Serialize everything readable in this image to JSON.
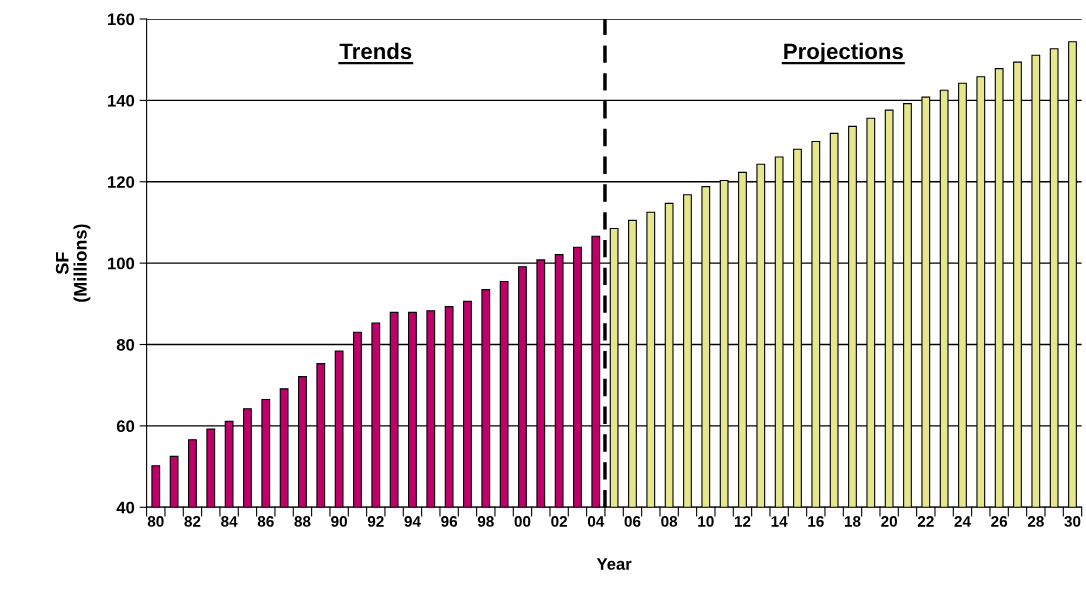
{
  "chart_data": {
    "type": "bar",
    "xlabel": "Year",
    "ylabel": "SF\n(Millions)",
    "categories": [
      "80",
      null,
      "82",
      null,
      "84",
      null,
      "86",
      null,
      "88",
      null,
      "90",
      null,
      "92",
      null,
      "94",
      null,
      "96",
      null,
      "98",
      null,
      "00",
      null,
      "02",
      null,
      "04",
      null,
      "06",
      null,
      "08",
      null,
      "10",
      null,
      "12",
      null,
      "14",
      null,
      "16",
      null,
      "18",
      null,
      "20",
      null,
      "22",
      null,
      "24",
      null,
      "26",
      null,
      "28",
      null,
      "30"
    ],
    "values": [
      50.2,
      52.5,
      56.6,
      59.2,
      61.1,
      64.2,
      66.5,
      69.1,
      72.1,
      75.3,
      78.4,
      83.0,
      85.3,
      87.9,
      87.9,
      88.3,
      89.3,
      90.6,
      93.5,
      95.5,
      99.1,
      100.8,
      102.1,
      103.9,
      106.6,
      108.5,
      110.5,
      112.5,
      114.7,
      116.8,
      118.8,
      120.3,
      122.3,
      124.3,
      126.1,
      128.0,
      129.9,
      131.9,
      133.6,
      135.6,
      137.6,
      139.2,
      140.8,
      142.5,
      144.2,
      145.8,
      147.8,
      149.4,
      151.1,
      152.7,
      154.4
    ],
    "colors": [
      "#c0006a",
      "#c0006a",
      "#c0006a",
      "#c0006a",
      "#c0006a",
      "#c0006a",
      "#c0006a",
      "#c0006a",
      "#c0006a",
      "#c0006a",
      "#c0006a",
      "#c0006a",
      "#c0006a",
      "#c0006a",
      "#c0006a",
      "#c0006a",
      "#c0006a",
      "#c0006a",
      "#c0006a",
      "#c0006a",
      "#c0006a",
      "#c0006a",
      "#c0006a",
      "#c0006a",
      "#c0006a",
      "#e6e68c",
      "#e6e68c",
      "#e6e68c",
      "#e6e68c",
      "#e6e68c",
      "#e6e68c",
      "#e6e68c",
      "#e6e68c",
      "#e6e68c",
      "#e6e68c",
      "#e6e68c",
      "#e6e68c",
      "#e6e68c",
      "#e6e68c",
      "#e6e68c",
      "#e6e68c",
      "#e6e68c",
      "#e6e68c",
      "#e6e68c",
      "#e6e68c",
      "#e6e68c",
      "#e6e68c",
      "#e6e68c",
      "#e6e68c",
      "#e6e68c",
      "#e6e68c"
    ],
    "ylim": [
      40,
      160
    ],
    "yticks": [
      40,
      60,
      80,
      100,
      120,
      140,
      160
    ],
    "grid": "y",
    "ref_lines": [
      {
        "axis": "x",
        "value": "04",
        "line_style": "dashed",
        "color": "#000000"
      }
    ],
    "annotations": [
      "Trends",
      "Projections"
    ]
  }
}
